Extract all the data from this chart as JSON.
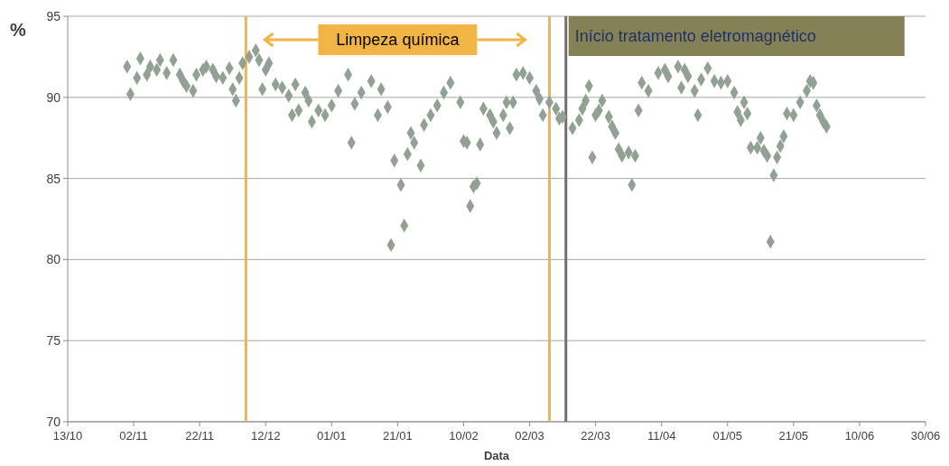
{
  "chart_data": {
    "type": "scatter",
    "xlabel": "Data",
    "ylabel": "%",
    "xlim": [
      "2000-10-13",
      "2001-06-30"
    ],
    "xticks": [
      {
        "value": "2000-10-13",
        "label": "13/10"
      },
      {
        "value": "2000-11-02",
        "label": "02/11"
      },
      {
        "value": "2000-11-22",
        "label": "22/11"
      },
      {
        "value": "2000-12-12",
        "label": "12/12"
      },
      {
        "value": "2001-01-01",
        "label": "01/01"
      },
      {
        "value": "2001-01-21",
        "label": "21/01"
      },
      {
        "value": "2001-02-10",
        "label": "10/02"
      },
      {
        "value": "2001-03-02",
        "label": "02/03"
      },
      {
        "value": "2001-03-22",
        "label": "22/03"
      },
      {
        "value": "2001-04-11",
        "label": "11/04"
      },
      {
        "value": "2001-05-01",
        "label": "01/05"
      },
      {
        "value": "2001-05-21",
        "label": "21/05"
      },
      {
        "value": "2001-06-10",
        "label": "10/06"
      },
      {
        "value": "2001-06-30",
        "label": "30/06"
      }
    ],
    "ylim": [
      70,
      95
    ],
    "yticks": [
      70,
      75,
      80,
      85,
      90,
      95
    ],
    "grid": "y",
    "marker": "diamond",
    "series": [
      {
        "color": "#93a194",
        "x": [
          "2000-10-31",
          "2000-11-01",
          "2000-11-03",
          "2000-11-04",
          "2000-11-06",
          "2000-11-07",
          "2000-11-09",
          "2000-11-10",
          "2000-11-12",
          "2000-11-14",
          "2000-11-16",
          "2000-11-17",
          "2000-11-18",
          "2000-11-20",
          "2000-11-21",
          "2000-11-23",
          "2000-11-24",
          "2000-11-26",
          "2000-11-27",
          "2000-11-29",
          "2000-12-01",
          "2000-12-02",
          "2000-12-03",
          "2000-12-04",
          "2000-12-05",
          "2000-12-07",
          "2000-12-09",
          "2000-12-10",
          "2000-12-11",
          "2000-12-12",
          "2000-12-13",
          "2000-12-15",
          "2000-12-17",
          "2000-12-19",
          "2000-12-20",
          "2000-12-21",
          "2000-12-22",
          "2000-12-24",
          "2000-12-25",
          "2000-12-26",
          "2000-12-28",
          "2000-12-30",
          "2001-01-01",
          "2001-01-03",
          "2001-01-06",
          "2001-01-07",
          "2001-01-08",
          "2001-01-10",
          "2001-01-13",
          "2001-01-15",
          "2001-01-16",
          "2001-01-18",
          "2001-01-19",
          "2001-01-20",
          "2001-01-22",
          "2001-01-23",
          "2001-01-24",
          "2001-01-25",
          "2001-01-26",
          "2001-01-28",
          "2001-01-29",
          "2001-01-31",
          "2001-02-02",
          "2001-02-04",
          "2001-02-06",
          "2001-02-09",
          "2001-02-10",
          "2001-02-11",
          "2001-02-12",
          "2001-02-13",
          "2001-02-14",
          "2001-02-15",
          "2001-02-16",
          "2001-02-18",
          "2001-02-19",
          "2001-02-20",
          "2001-02-22",
          "2001-02-23",
          "2001-02-24",
          "2001-02-25",
          "2001-02-26",
          "2001-02-28",
          "2001-03-02",
          "2001-03-04",
          "2001-03-05",
          "2001-03-06",
          "2001-03-08",
          "2001-03-10",
          "2001-03-11",
          "2001-03-12",
          "2001-03-15",
          "2001-03-17",
          "2001-03-18",
          "2001-03-19",
          "2001-03-20",
          "2001-03-21",
          "2001-03-22",
          "2001-03-23",
          "2001-03-24",
          "2001-03-26",
          "2001-03-27",
          "2001-03-28",
          "2001-03-29",
          "2001-03-30",
          "2001-04-01",
          "2001-04-02",
          "2001-04-03",
          "2001-04-04",
          "2001-04-05",
          "2001-04-07",
          "2001-04-10",
          "2001-04-12",
          "2001-04-13",
          "2001-04-16",
          "2001-04-17",
          "2001-04-18",
          "2001-04-19",
          "2001-04-21",
          "2001-04-22",
          "2001-04-23",
          "2001-04-25",
          "2001-04-27",
          "2001-04-29",
          "2001-05-01",
          "2001-05-03",
          "2001-05-04",
          "2001-05-05",
          "2001-05-06",
          "2001-05-07",
          "2001-05-08",
          "2001-05-10",
          "2001-05-11",
          "2001-05-12",
          "2001-05-13",
          "2001-05-14",
          "2001-05-15",
          "2001-05-16",
          "2001-05-17",
          "2001-05-18",
          "2001-05-19",
          "2001-05-21",
          "2001-05-23",
          "2001-05-25",
          "2001-05-26",
          "2001-05-27",
          "2001-05-28",
          "2001-05-29",
          "2001-05-30",
          "2001-05-31"
        ],
        "values": [
          91.9,
          90.2,
          91.2,
          92.4,
          91.4,
          91.9,
          91.7,
          92.3,
          91.5,
          92.3,
          91.4,
          91.0,
          90.7,
          90.4,
          91.4,
          91.7,
          91.9,
          91.7,
          91.3,
          91.2,
          91.8,
          90.5,
          89.8,
          91.2,
          92.1,
          92.5,
          92.9,
          92.3,
          90.5,
          91.7,
          92.1,
          90.8,
          90.6,
          90.1,
          88.9,
          90.8,
          89.2,
          90.3,
          89.8,
          88.5,
          89.2,
          88.9,
          89.5,
          90.4,
          91.4,
          87.2,
          89.6,
          90.3,
          91.0,
          88.9,
          90.5,
          89.4,
          80.9,
          86.1,
          84.6,
          82.1,
          86.5,
          87.8,
          87.2,
          85.8,
          88.3,
          88.9,
          89.5,
          90.3,
          90.9,
          89.7,
          87.3,
          87.2,
          83.3,
          84.5,
          84.7,
          87.1,
          89.3,
          88.9,
          88.5,
          87.8,
          88.9,
          89.7,
          88.1,
          89.7,
          91.4,
          91.5,
          91.2,
          90.4,
          89.9,
          88.9,
          89.7,
          89.3,
          88.7,
          88.8,
          88.1,
          88.6,
          89.3,
          89.8,
          90.7,
          86.3,
          88.9,
          89.2,
          89.8,
          88.8,
          88.2,
          87.8,
          86.8,
          86.4,
          86.6,
          84.6,
          86.4,
          89.2,
          90.9,
          90.4,
          91.5,
          91.7,
          91.3,
          91.9,
          90.6,
          91.7,
          91.3,
          90.4,
          88.9,
          91.1,
          91.8,
          91.0,
          90.9,
          91.0,
          90.3,
          89.1,
          88.6,
          89.7,
          89.0,
          86.9,
          86.9,
          87.5,
          86.7,
          86.4,
          81.1,
          85.2,
          86.3,
          87.0,
          87.6,
          89.0,
          88.9,
          89.7,
          90.4,
          91.0,
          90.9,
          89.5,
          88.9,
          88.5,
          88.2
        ]
      }
    ],
    "ref_lines": [
      {
        "axis": "x",
        "value": "2000-12-06",
        "color": "#f0b545"
      },
      {
        "axis": "x",
        "value": "2001-03-08",
        "color": "#f0b545"
      },
      {
        "axis": "x",
        "value": "2001-03-13",
        "color": "#776b6e",
        "label": "Início tratamento eletromagnético"
      }
    ],
    "annotations": [
      "Limpeza química"
    ]
  }
}
